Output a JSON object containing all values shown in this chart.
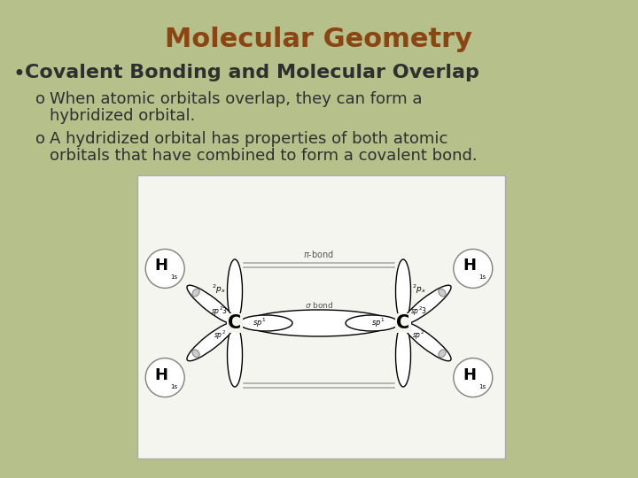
{
  "title": "Molecular Geometry",
  "title_color": "#8B4513",
  "background_color": "#B5C08B",
  "bullet_text": "Covalent Bonding and Molecular Overlap",
  "sub_bullet1_line1": "When atomic orbitals overlap, they can form a",
  "sub_bullet1_line2": "hybridized orbital.",
  "sub_bullet2_line1": "A hydridized orbital has properties of both atomic",
  "sub_bullet2_line2": "orbitals that have combined to form a covalent bond.",
  "text_color": "#2F2F2F",
  "image_box_color": "#F5F5F0",
  "image_box_border": "#AAAAAA",
  "title_fontsize": 22,
  "bullet_fontsize": 16,
  "sub_bullet_fontsize": 13
}
